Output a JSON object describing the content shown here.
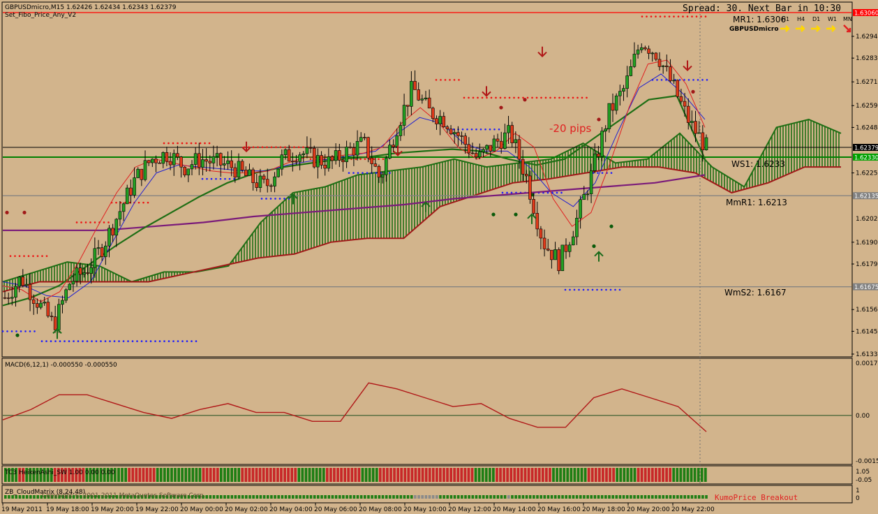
{
  "header": {
    "symbol_line": "GBPUSDmicro,M15  1.62426 1.62434 1.62343 1.62379",
    "indicator_line": "Set_Fibo_Price_Any_V2",
    "spread_text": "Spread: 30. Next Bar in 10:30",
    "symbol_label": "GBPUSDmicro",
    "timeframes": [
      "H1",
      "H4",
      "D1",
      "W1",
      "MN"
    ]
  },
  "main_axis": {
    "ticks": [
      "1.62940",
      "1.62830",
      "1.62710",
      "1.62590",
      "1.62480",
      "1.62250",
      "1.61900",
      "1.61790",
      "1.61560",
      "1.61450",
      "1.61335"
    ],
    "tick_values": [
      1.6294,
      1.6283,
      1.6271,
      1.6259,
      1.6248,
      1.6225,
      1.619,
      1.6179,
      1.6156,
      1.6145,
      1.61335
    ],
    "extra_ticks": [
      {
        "label": "1.62020",
        "value": 1.6202
      },
      {
        "label": "1.62135",
        "value": 1.62135
      }
    ],
    "ymin": 1.61335,
    "ymax": 1.6306
  },
  "price_badges": [
    {
      "label": "1.63060",
      "value": 1.6306,
      "color": "#ff0000",
      "text_color": "#ffffff"
    },
    {
      "label": "1.62379",
      "value": 1.62379,
      "color": "#000000",
      "text_color": "#ffffff"
    },
    {
      "label": "1.62330",
      "value": 1.6233,
      "color": "#00a000",
      "text_color": "#ffffff"
    },
    {
      "label": "1.62135",
      "value": 1.62135,
      "color": "#808080",
      "text_color": "#ffffff"
    },
    {
      "label": "1.61675",
      "value": 1.61675,
      "color": "#808080",
      "text_color": "#ffffff"
    }
  ],
  "levels": [
    {
      "label": "MR1:  1.6306",
      "value": 1.6306,
      "color": "#ff0000"
    },
    {
      "label": "WS1:  1.6233",
      "value": 1.6233,
      "color": "#008000"
    },
    {
      "label": "MmR1:  1.6213",
      "value": 1.62135,
      "color": "#808080"
    },
    {
      "label": "WmS2:  1.6167",
      "value": 1.61675,
      "color": "#808080"
    }
  ],
  "current_price": 1.62379,
  "annotations": [
    {
      "label": "-20 pips",
      "color": "#e02020"
    }
  ],
  "chart_data": {
    "type": "candlestick",
    "x_labels": [
      "19 May 2011",
      "19 May 18:00",
      "19 May 20:00",
      "19 May 22:00",
      "20 May 00:00",
      "20 May 02:00",
      "20 May 04:00",
      "20 May 06:00",
      "20 May 08:00",
      "20 May 10:00",
      "20 May 12:00",
      "20 May 14:00",
      "20 May 16:00",
      "20 May 18:00",
      "20 May 20:00",
      "20 May 22:00"
    ],
    "close_path": [
      1.6162,
      1.6172,
      1.616,
      1.6148,
      1.617,
      1.6176,
      1.6188,
      1.6205,
      1.6222,
      1.6232,
      1.6235,
      1.6228,
      1.6232,
      1.623,
      1.6228,
      1.6222,
      1.6218,
      1.6232,
      1.6236,
      1.6232,
      1.623,
      1.6236,
      1.624,
      1.6222,
      1.6248,
      1.6268,
      1.6256,
      1.6252,
      1.6242,
      1.6232,
      1.624,
      1.6245,
      1.6222,
      1.619,
      1.618,
      1.62,
      1.6225,
      1.6255,
      1.6268,
      1.6292,
      1.6285,
      1.6268,
      1.625,
      1.6238
    ],
    "ma_red_path": [
      1.6168,
      1.6166,
      1.616,
      1.6165,
      1.618,
      1.6198,
      1.6215,
      1.6228,
      1.6232,
      1.623,
      1.6228,
      1.6226,
      1.6225,
      1.6225,
      1.6226,
      1.623,
      1.6233,
      1.6233,
      1.6234,
      1.6235,
      1.6238,
      1.625,
      1.6258,
      1.625,
      1.6238,
      1.6232,
      1.6236,
      1.6245,
      1.6238,
      1.6212,
      1.6198,
      1.6205,
      1.623,
      1.6258,
      1.628,
      1.6282,
      1.627,
      1.6248
    ],
    "ma_blue_path": [
      1.617,
      1.6168,
      1.6163,
      1.6162,
      1.617,
      1.619,
      1.621,
      1.6225,
      1.6229,
      1.6228,
      1.6227,
      1.6226,
      1.6226,
      1.6229,
      1.6231,
      1.6232,
      1.6234,
      1.6236,
      1.6245,
      1.6253,
      1.625,
      1.624,
      1.6236,
      1.6236,
      1.6228,
      1.6215,
      1.6208,
      1.622,
      1.6245,
      1.6268,
      1.6275,
      1.6265,
      1.6252
    ],
    "ma_green_path": [
      1.6158,
      1.6162,
      1.6168,
      1.6178,
      1.6188,
      1.6197,
      1.6205,
      1.6213,
      1.622,
      1.6225,
      1.6228,
      1.623,
      1.6232,
      1.6233,
      1.6235,
      1.6236,
      1.6237,
      1.6236,
      1.6232,
      1.6229,
      1.6232,
      1.6242,
      1.6252,
      1.6262,
      1.6264,
      1.6232
    ],
    "ma_purple_path": [
      1.6196,
      1.6196,
      1.6196,
      1.6198,
      1.62,
      1.6203,
      1.6205,
      1.6207,
      1.6209,
      1.6212,
      1.6214,
      1.6216,
      1.6218,
      1.622,
      1.6224
    ],
    "cloud_top_path": [
      1.617,
      1.6175,
      1.618,
      1.6178,
      1.617,
      1.6175,
      1.6175,
      1.6178,
      1.62,
      1.6215,
      1.6218,
      1.6224,
      1.6226,
      1.6228,
      1.6232,
      1.6228,
      1.623,
      1.6232,
      1.624,
      1.623,
      1.6232,
      1.6245,
      1.6228,
      1.6218,
      1.6248,
      1.6252,
      1.6245
    ],
    "cloud_bottom_path": [
      1.6165,
      1.617,
      1.617,
      1.617,
      1.617,
      1.6174,
      1.6178,
      1.6182,
      1.6184,
      1.619,
      1.6192,
      1.6192,
      1.6208,
      1.6214,
      1.622,
      1.6222,
      1.6225,
      1.6228,
      1.6228,
      1.6225,
      1.6215,
      1.622,
      1.6228,
      1.6228
    ],
    "macd": {
      "label": "MACD(6,12,1) -0.000550 -0.000550",
      "ticks": [
        "0.00177",
        "0.00",
        "-0.00154"
      ],
      "tick_values": [
        0.00177,
        0.0,
        -0.00154
      ],
      "values": [
        -0.00015,
        0.0002,
        0.0007,
        0.0007,
        0.0004,
        0.0001,
        -0.0001,
        0.0002,
        0.0004,
        0.0001,
        0.0001,
        -0.0002,
        -0.0002,
        0.0011,
        0.0009,
        0.0006,
        0.0003,
        0.0004,
        -0.0001,
        -0.0004,
        -0.0004,
        0.0006,
        0.0009,
        0.0006,
        0.0003,
        -0.00055
      ],
      "ymin": -0.00154,
      "ymax": 0.00177
    },
    "heiken_panel": {
      "label": "TC3 HeikenAshi_SW 1.00 0.00 0.00",
      "ticks": [
        "1.05",
        "-0.05"
      ],
      "pattern": "GGGGRRGGGGGGGGRRRRRRRRRGGGGGGGGGGGGRRRRRRRRGGGGGGGGGGGGGRRRRRGGGGGGRRRRRRRRRRRRRRRRGGGGGGGGRRRRRRRRRRGGGGGRRRRRRRRRRRRRRRRRRRRRRRRRRRGGGGGGRRRRRRRRRRRRRRRRGGGGGGGGGGRRRRRRRRGGGGGGRRRRRRRRRRGGGGGGGGGG"
    },
    "cloud_panel": {
      "label": "ZB_CloudMatrix (8,24,48)",
      "overlay_label": "Copyright © 2001-2011 MetaQuotes Software Corp.",
      "ticks": [
        "1",
        "0"
      ],
      "breakout_label": "KumoPrice Breakout"
    }
  }
}
